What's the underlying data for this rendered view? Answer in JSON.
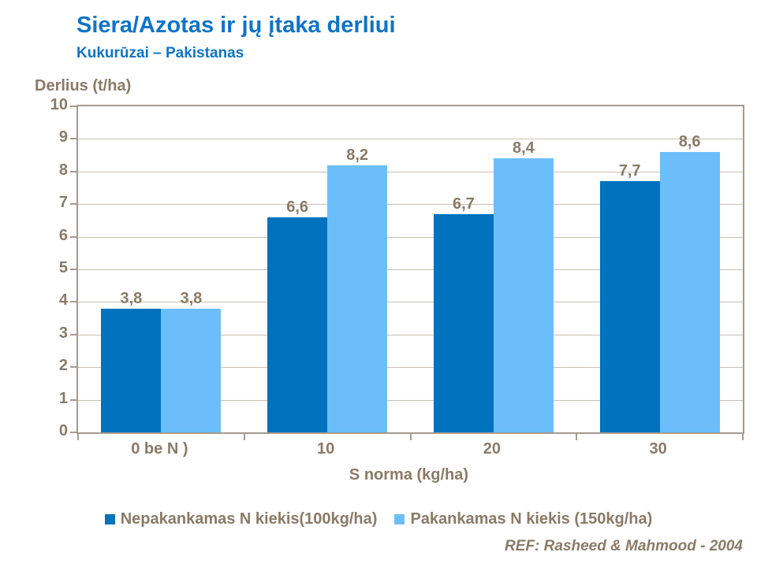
{
  "header": {
    "title": "Siera/Azotas ir jų įtaka derliui",
    "subtitle": "Kukurūzai – Pakistanas"
  },
  "chart_data": {
    "type": "bar",
    "title": "Siera/Azotas ir jų įtaka derliui",
    "subtitle": "Kukurūzai – Pakistanas",
    "ylabel": "Derlius (t/ha)",
    "xlabel": "S norma (kg/ha)",
    "categories": [
      "0 be N )",
      "10",
      "20",
      "30"
    ],
    "series": [
      {
        "name": "Nepakankamas N kiekis(100kg/ha)",
        "color": "#0072BE",
        "values": [
          3.8,
          6.6,
          6.7,
          7.7
        ]
      },
      {
        "name": "Pakankamas N kiekis (150kg/ha)",
        "color": "#6CBEFA",
        "values": [
          3.8,
          8.2,
          8.4,
          8.6
        ]
      }
    ],
    "ylim": [
      0,
      10
    ],
    "yticks": [
      10,
      9,
      8,
      7,
      6,
      5,
      4,
      3,
      2,
      1,
      0
    ],
    "grid": true,
    "legend_position": "bottom",
    "decimal_separator": ","
  },
  "footer": {
    "reference": "REF: Rasheed & Mahmood - 2004"
  },
  "colors": {
    "title_blue": "#0E74C8",
    "text_brown": "#8A7A66",
    "gridline": "#C9C0B4",
    "axis": "#A69A8D",
    "series1": "#0072BE",
    "series2": "#6CBEFA",
    "background": "#FFFFFF"
  }
}
